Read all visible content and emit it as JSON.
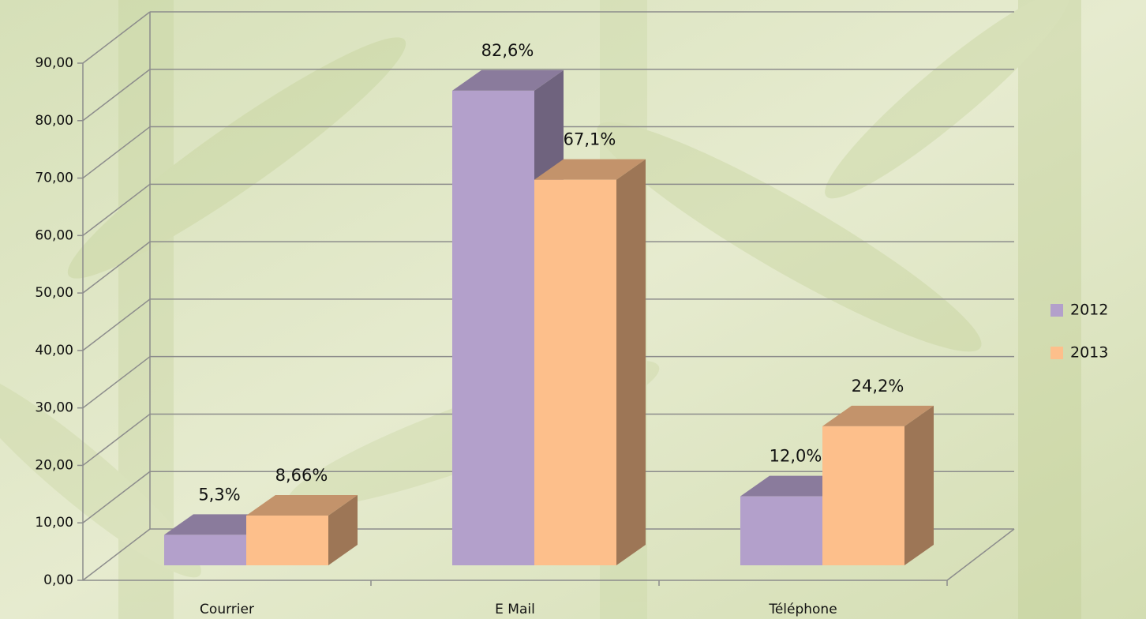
{
  "chart_data": {
    "type": "bar3d",
    "categories": [
      "Courrier",
      "E Mail",
      "Téléphone"
    ],
    "series": [
      {
        "name": "2012",
        "color": "#b3a0cb",
        "values": [
          5.3,
          82.6,
          12.0
        ],
        "value_labels": [
          "5,3%",
          "82,6%",
          "12,0%"
        ]
      },
      {
        "name": "2013",
        "color": "#fdbf8b",
        "values": [
          8.66,
          67.1,
          24.2
        ],
        "value_labels": [
          "8,66%",
          "67,1%",
          "24,2%"
        ]
      }
    ],
    "ylim": [
      0,
      90
    ],
    "yticks": [
      {
        "value": 0,
        "label": "0,00"
      },
      {
        "value": 10,
        "label": "10,00"
      },
      {
        "value": 20,
        "label": "20,00"
      },
      {
        "value": 30,
        "label": "30,00"
      },
      {
        "value": 40,
        "label": "40,00"
      },
      {
        "value": 50,
        "label": "50,00"
      },
      {
        "value": 60,
        "label": "60,00"
      },
      {
        "value": 70,
        "label": "70,00"
      },
      {
        "value": 80,
        "label": "80,00"
      },
      {
        "value": 90,
        "label": "90,00"
      }
    ],
    "grid": true,
    "legend": "right"
  }
}
